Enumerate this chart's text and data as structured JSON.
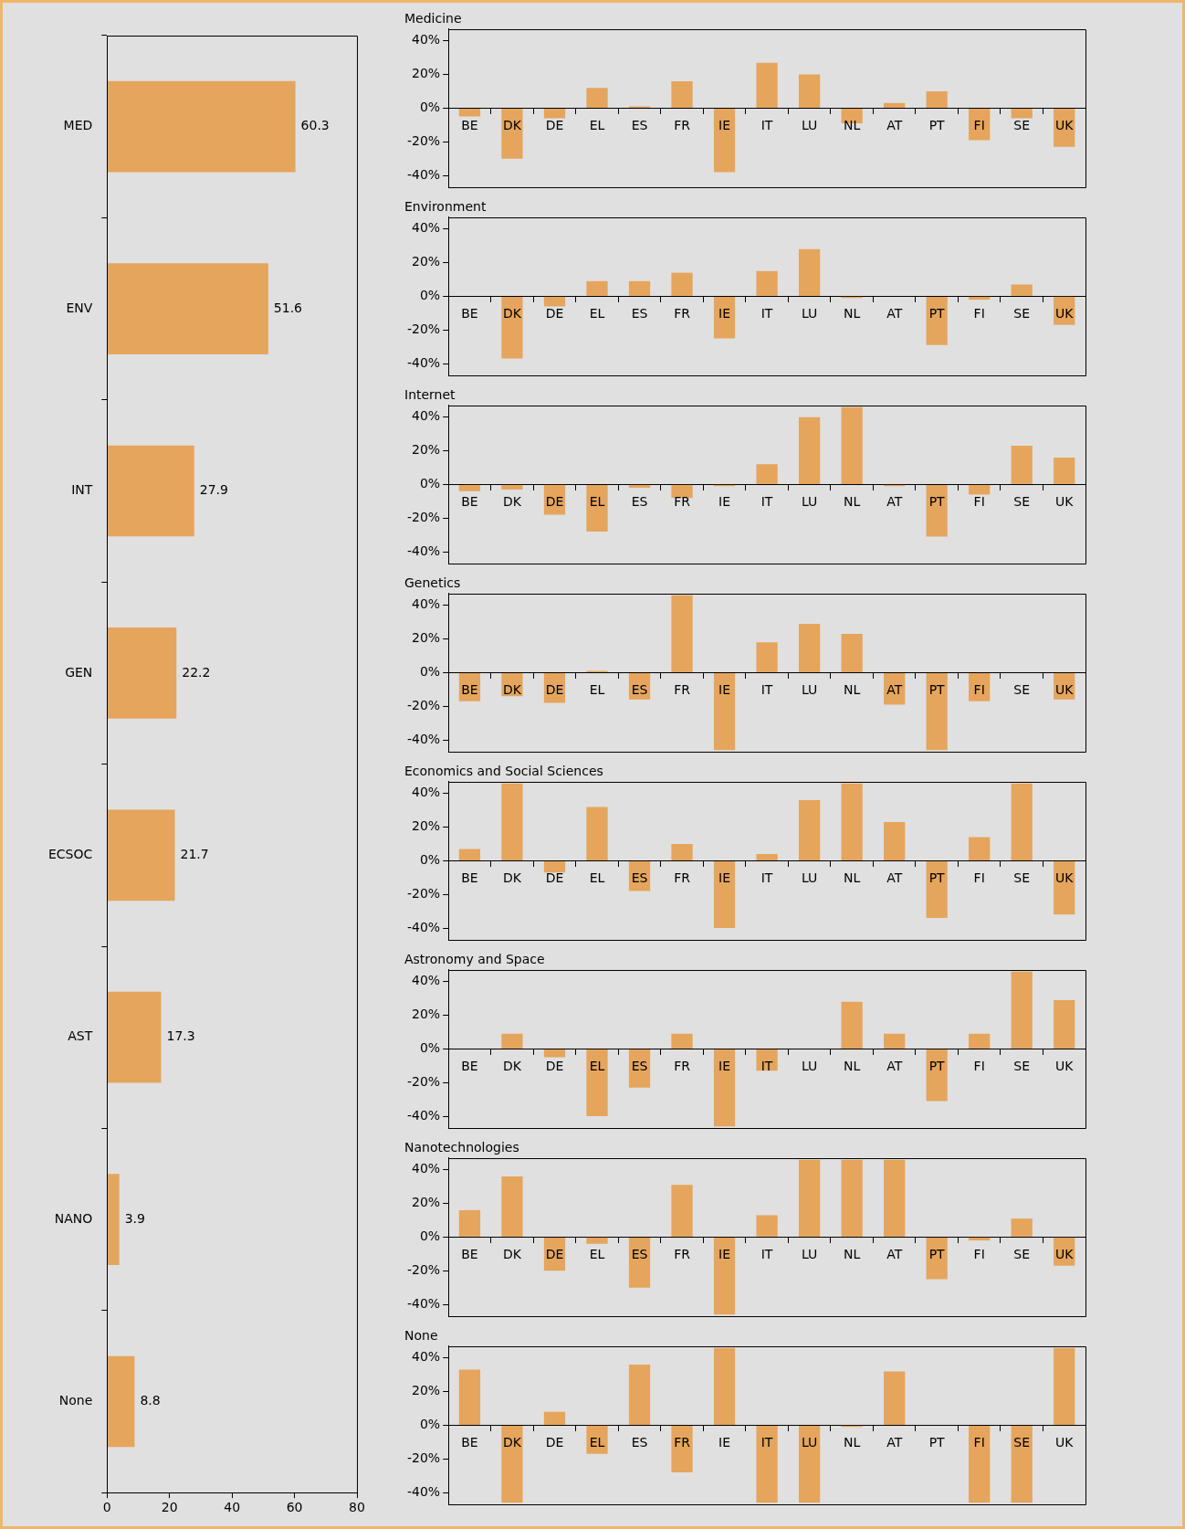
{
  "chart_data": [
    {
      "type": "bar",
      "orientation": "horizontal",
      "categories": [
        "MED",
        "ENV",
        "INT",
        "GEN",
        "ECSOC",
        "AST",
        "NANO",
        "None"
      ],
      "values": [
        60.3,
        51.6,
        27.9,
        22.2,
        21.7,
        17.3,
        3.9,
        8.8
      ],
      "color": "#e5a55d",
      "xlim": [
        0,
        80
      ],
      "xticks": [
        0,
        20,
        40,
        60,
        80
      ],
      "data_labels": true,
      "grid": false
    },
    {
      "type": "bar",
      "title": "Medicine",
      "categories": [
        "BE",
        "DK",
        "DE",
        "EL",
        "ES",
        "FR",
        "IE",
        "IT",
        "LU",
        "NL",
        "AT",
        "PT",
        "FI",
        "SE",
        "UK"
      ],
      "values": [
        -5,
        -30,
        -6,
        12,
        1,
        16,
        -38,
        27,
        20,
        -9,
        3,
        10,
        -19,
        -6,
        -23
      ],
      "color": "#e5a55d",
      "ylim": [
        -47,
        47
      ],
      "yticks": [
        {
          "value": -40,
          "label": "-40%"
        },
        {
          "value": -20,
          "label": "-20%"
        },
        {
          "value": 0,
          "label": "0%"
        },
        {
          "value": 20,
          "label": "20%"
        },
        {
          "value": 40,
          "label": "40%"
        }
      ],
      "grid": false
    },
    {
      "type": "bar",
      "title": "Environment",
      "categories": [
        "BE",
        "DK",
        "DE",
        "EL",
        "ES",
        "FR",
        "IE",
        "IT",
        "LU",
        "NL",
        "AT",
        "PT",
        "FI",
        "SE",
        "UK"
      ],
      "values": [
        0,
        -37,
        -6,
        9,
        9,
        14,
        -25,
        15,
        28,
        -1,
        0,
        -29,
        -2,
        7,
        -17
      ],
      "color": "#e5a55d",
      "ylim": [
        -47,
        47
      ],
      "yticks": [
        {
          "value": -40,
          "label": "-40%"
        },
        {
          "value": -20,
          "label": "-20%"
        },
        {
          "value": 0,
          "label": "0%"
        },
        {
          "value": 20,
          "label": "20%"
        },
        {
          "value": 40,
          "label": "40%"
        }
      ],
      "grid": false
    },
    {
      "type": "bar",
      "title": "Internet",
      "categories": [
        "BE",
        "DK",
        "DE",
        "EL",
        "ES",
        "FR",
        "IE",
        "IT",
        "LU",
        "NL",
        "AT",
        "PT",
        "FI",
        "SE",
        "UK"
      ],
      "values": [
        -4,
        -3,
        -18,
        -28,
        -2,
        -8,
        -1,
        12,
        40,
        46,
        -1,
        -31,
        -6,
        23,
        16
      ],
      "color": "#e5a55d",
      "ylim": [
        -47,
        47
      ],
      "yticks": [
        {
          "value": -40,
          "label": "-40%"
        },
        {
          "value": -20,
          "label": "-20%"
        },
        {
          "value": 0,
          "label": "0%"
        },
        {
          "value": 20,
          "label": "20%"
        },
        {
          "value": 40,
          "label": "40%"
        }
      ],
      "grid": false
    },
    {
      "type": "bar",
      "title": "Genetics",
      "categories": [
        "BE",
        "DK",
        "DE",
        "EL",
        "ES",
        "FR",
        "IE",
        "IT",
        "LU",
        "NL",
        "AT",
        "PT",
        "FI",
        "SE",
        "UK"
      ],
      "values": [
        -17,
        -14,
        -18,
        1,
        -16,
        46,
        -46,
        18,
        29,
        23,
        -19,
        -46,
        -17,
        0,
        -16
      ],
      "color": "#e5a55d",
      "ylim": [
        -47,
        47
      ],
      "yticks": [
        {
          "value": -40,
          "label": "-40%"
        },
        {
          "value": -20,
          "label": "-20%"
        },
        {
          "value": 0,
          "label": "0%"
        },
        {
          "value": 20,
          "label": "20%"
        },
        {
          "value": 40,
          "label": "40%"
        }
      ],
      "grid": false
    },
    {
      "type": "bar",
      "title": "Economics and Social Sciences",
      "categories": [
        "BE",
        "DK",
        "DE",
        "EL",
        "ES",
        "FR",
        "IE",
        "IT",
        "LU",
        "NL",
        "AT",
        "PT",
        "FI",
        "SE",
        "UK"
      ],
      "values": [
        7,
        46,
        -7,
        32,
        -18,
        10,
        -40,
        4,
        36,
        46,
        23,
        -34,
        14,
        46,
        -32
      ],
      "color": "#e5a55d",
      "ylim": [
        -47,
        47
      ],
      "yticks": [
        {
          "value": -40,
          "label": "-40%"
        },
        {
          "value": -20,
          "label": "-20%"
        },
        {
          "value": 0,
          "label": "0%"
        },
        {
          "value": 20,
          "label": "20%"
        },
        {
          "value": 40,
          "label": "40%"
        }
      ],
      "grid": false
    },
    {
      "type": "bar",
      "title": "Astronomy and Space",
      "categories": [
        "BE",
        "DK",
        "DE",
        "EL",
        "ES",
        "FR",
        "IE",
        "IT",
        "LU",
        "NL",
        "AT",
        "PT",
        "FI",
        "SE",
        "UK"
      ],
      "values": [
        0,
        9,
        -5,
        -40,
        -23,
        9,
        -46,
        -13,
        0,
        28,
        9,
        -31,
        9,
        46,
        29
      ],
      "color": "#e5a55d",
      "ylim": [
        -47,
        47
      ],
      "yticks": [
        {
          "value": -40,
          "label": "-40%"
        },
        {
          "value": -20,
          "label": "-20%"
        },
        {
          "value": 0,
          "label": "0%"
        },
        {
          "value": 20,
          "label": "20%"
        },
        {
          "value": 40,
          "label": "40%"
        }
      ],
      "grid": false
    },
    {
      "type": "bar",
      "title": "Nanotechnologies",
      "categories": [
        "BE",
        "DK",
        "DE",
        "EL",
        "ES",
        "FR",
        "IE",
        "IT",
        "LU",
        "NL",
        "AT",
        "PT",
        "FI",
        "SE",
        "UK"
      ],
      "values": [
        16,
        36,
        -20,
        -4,
        -30,
        31,
        -46,
        13,
        46,
        46,
        46,
        -25,
        -2,
        11,
        -17
      ],
      "color": "#e5a55d",
      "ylim": [
        -47,
        47
      ],
      "yticks": [
        {
          "value": -40,
          "label": "-40%"
        },
        {
          "value": -20,
          "label": "-20%"
        },
        {
          "value": 0,
          "label": "0%"
        },
        {
          "value": 20,
          "label": "20%"
        },
        {
          "value": 40,
          "label": "40%"
        }
      ],
      "grid": false
    },
    {
      "type": "bar",
      "title": "None",
      "categories": [
        "BE",
        "DK",
        "DE",
        "EL",
        "ES",
        "FR",
        "IE",
        "IT",
        "LU",
        "NL",
        "AT",
        "PT",
        "FI",
        "SE",
        "UK"
      ],
      "values": [
        33,
        -46,
        8,
        -17,
        36,
        -28,
        46,
        -46,
        -46,
        -1,
        32,
        0,
        -46,
        -46,
        46
      ],
      "color": "#e5a55d",
      "ylim": [
        -47,
        47
      ],
      "yticks": [
        {
          "value": -40,
          "label": "-40%"
        },
        {
          "value": -20,
          "label": "-20%"
        },
        {
          "value": 0,
          "label": "0%"
        },
        {
          "value": 20,
          "label": "20%"
        },
        {
          "value": 40,
          "label": "40%"
        }
      ],
      "grid": false
    }
  ]
}
